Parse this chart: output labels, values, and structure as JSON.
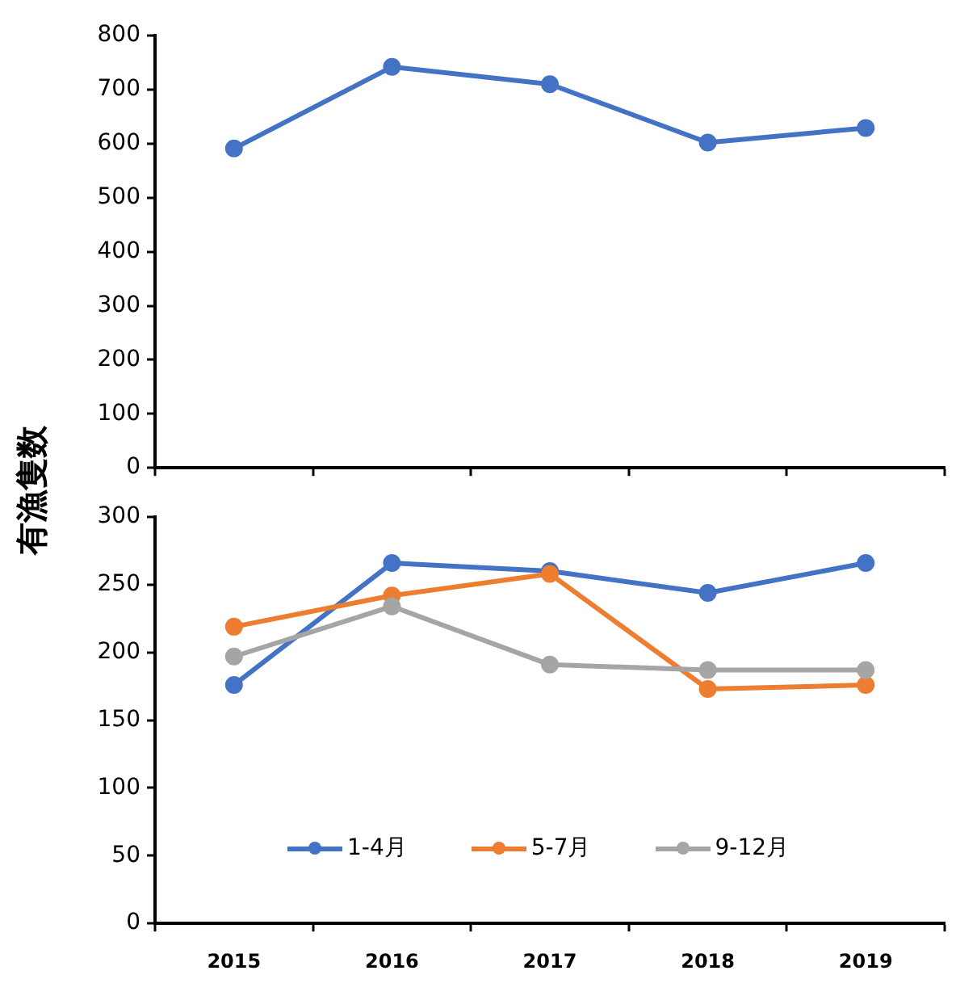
{
  "chart_data": [
    {
      "type": "line",
      "categories": [
        "2015",
        "2016",
        "2017",
        "2018",
        "2019"
      ],
      "ylim": [
        0,
        800
      ],
      "yticks": [
        0,
        100,
        200,
        300,
        400,
        500,
        600,
        700,
        800
      ],
      "tick_labels": "y",
      "grid": false,
      "legend": false,
      "marker": "circle",
      "line_style": "solid",
      "series": [
        {
          "color": "#4472c4",
          "values": [
            591,
            742,
            710,
            602,
            629
          ]
        }
      ]
    },
    {
      "type": "line",
      "categories": [
        "2015",
        "2016",
        "2017",
        "2018",
        "2019"
      ],
      "ylabel": "有漁隻数",
      "ylim": [
        0,
        300
      ],
      "yticks": [
        0,
        50,
        100,
        150,
        200,
        250,
        300
      ],
      "grid": false,
      "legend": "bottom",
      "marker": "circle",
      "line_style": "solid",
      "series": [
        {
          "name": "1-4月",
          "color": "#4472c4",
          "values": [
            176,
            266,
            260,
            244,
            266
          ]
        },
        {
          "name": "5-7月",
          "color": "#ed7d31",
          "values": [
            219,
            242,
            258,
            173,
            176
          ]
        },
        {
          "name": "9-12月",
          "color": "#a5a5a5",
          "values": [
            197,
            234,
            191,
            187,
            187
          ]
        }
      ]
    }
  ]
}
